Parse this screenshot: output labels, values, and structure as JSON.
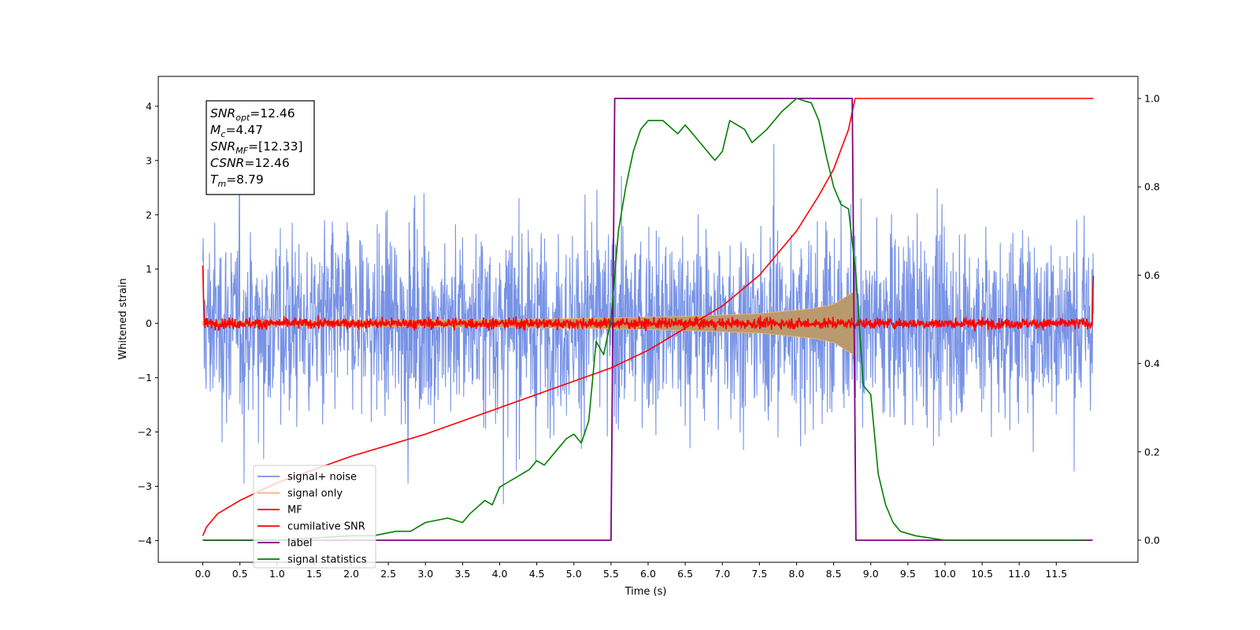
{
  "chart_data": {
    "type": "line",
    "xlabel": "Time (s)",
    "ylabel": "Whitened strain",
    "xlim": [
      -0.6,
      12.6
    ],
    "ylim": [
      -4.4,
      4.55
    ],
    "y2lim": [
      -0.05,
      1.05
    ],
    "x_ticks": [
      "0.0",
      "0.5",
      "1.0",
      "1.5",
      "2.0",
      "2.5",
      "3.0",
      "3.5",
      "4.0",
      "4.5",
      "5.0",
      "5.5",
      "6.0",
      "6.5",
      "7.0",
      "7.5",
      "8.0",
      "8.5",
      "9.0",
      "9.5",
      "10.0",
      "10.5",
      "11.0",
      "11.5"
    ],
    "y_ticks": [
      "4",
      "3",
      "2",
      "1",
      "0",
      "−1",
      "−2",
      "−3",
      "−4"
    ],
    "y2_ticks": [
      "1.0",
      "0.8",
      "0.6",
      "0.4",
      "0.2",
      "0.0"
    ],
    "info_box": [
      {
        "sym": "SNR",
        "sub": "opt",
        "val": "=12.46"
      },
      {
        "sym": "M",
        "sub": "c",
        "val": "=4.47"
      },
      {
        "sym": "SNR",
        "sub": "MF",
        "val": "=[12.33]"
      },
      {
        "sym": "CSNR",
        "sub": "",
        "val": "=12.46"
      },
      {
        "sym": "T",
        "sub": "m",
        "val": "=8.79"
      }
    ],
    "legend_position": "lower-left",
    "series": [
      {
        "name": "signal+ noise",
        "color": "#7893e6",
        "axis": "left",
        "kind": "noise",
        "noise_amplitude": 2.9,
        "x_range": [
          0.0,
          12.0
        ]
      },
      {
        "name": "signal only",
        "color": "#f5b676",
        "axis": "left",
        "kind": "chirp",
        "start": 0.0,
        "end": 8.79,
        "x": [
          0.0,
          2.0,
          4.0,
          5.5,
          6.5,
          7.5,
          8.2,
          8.5,
          8.79
        ],
        "envelope": [
          0.04,
          0.05,
          0.07,
          0.1,
          0.13,
          0.18,
          0.27,
          0.35,
          0.6
        ]
      },
      {
        "name": "MF",
        "color": "#ff0000",
        "axis": "left",
        "kind": "noise",
        "noise_amplitude": 0.14,
        "edge_spike": 1.0,
        "x_range": [
          0.0,
          12.0
        ]
      },
      {
        "name": "cumilative SNR",
        "color": "#ff0000",
        "axis": "right",
        "x": [
          0.0,
          0.05,
          0.2,
          0.5,
          1.0,
          2.0,
          3.0,
          4.0,
          5.0,
          5.5,
          6.0,
          6.5,
          7.0,
          7.5,
          8.0,
          8.3,
          8.5,
          8.7,
          8.79,
          12.0
        ],
        "y": [
          0.01,
          0.03,
          0.06,
          0.09,
          0.13,
          0.19,
          0.24,
          0.3,
          0.36,
          0.39,
          0.43,
          0.48,
          0.53,
          0.6,
          0.7,
          0.78,
          0.84,
          0.93,
          1.0,
          1.0
        ]
      },
      {
        "name": "label",
        "color": "#800080",
        "axis": "right",
        "x": [
          0.0,
          5.5,
          5.55,
          8.75,
          8.8,
          11.99
        ],
        "y": [
          0.0,
          0.0,
          1.0,
          1.0,
          0.0,
          0.0
        ]
      },
      {
        "name": "signal statistics",
        "color": "#008000",
        "axis": "right",
        "x": [
          0.0,
          1.0,
          2.0,
          2.3,
          2.6,
          2.8,
          2.9,
          3.0,
          3.3,
          3.5,
          3.6,
          3.8,
          3.9,
          4.0,
          4.1,
          4.2,
          4.4,
          4.5,
          4.6,
          4.8,
          4.9,
          5.0,
          5.1,
          5.2,
          5.3,
          5.4,
          5.5,
          5.6,
          5.7,
          5.8,
          5.9,
          6.0,
          6.2,
          6.4,
          6.5,
          6.7,
          6.9,
          7.0,
          7.1,
          7.3,
          7.4,
          7.6,
          7.8,
          8.0,
          8.2,
          8.3,
          8.4,
          8.5,
          8.6,
          8.7,
          8.8,
          8.9,
          9.0,
          9.1,
          9.2,
          9.3,
          9.4,
          9.6,
          10.0,
          11.9
        ],
        "y": [
          0.0,
          0.0,
          0.01,
          0.01,
          0.02,
          0.02,
          0.03,
          0.04,
          0.05,
          0.04,
          0.06,
          0.09,
          0.08,
          0.12,
          0.13,
          0.14,
          0.16,
          0.18,
          0.17,
          0.21,
          0.23,
          0.24,
          0.22,
          0.27,
          0.45,
          0.42,
          0.5,
          0.7,
          0.8,
          0.88,
          0.93,
          0.95,
          0.95,
          0.92,
          0.94,
          0.9,
          0.86,
          0.88,
          0.95,
          0.93,
          0.9,
          0.93,
          0.97,
          1.0,
          0.99,
          0.95,
          0.87,
          0.8,
          0.76,
          0.75,
          0.6,
          0.35,
          0.33,
          0.15,
          0.08,
          0.04,
          0.02,
          0.01,
          0.0,
          0.0
        ]
      }
    ]
  }
}
